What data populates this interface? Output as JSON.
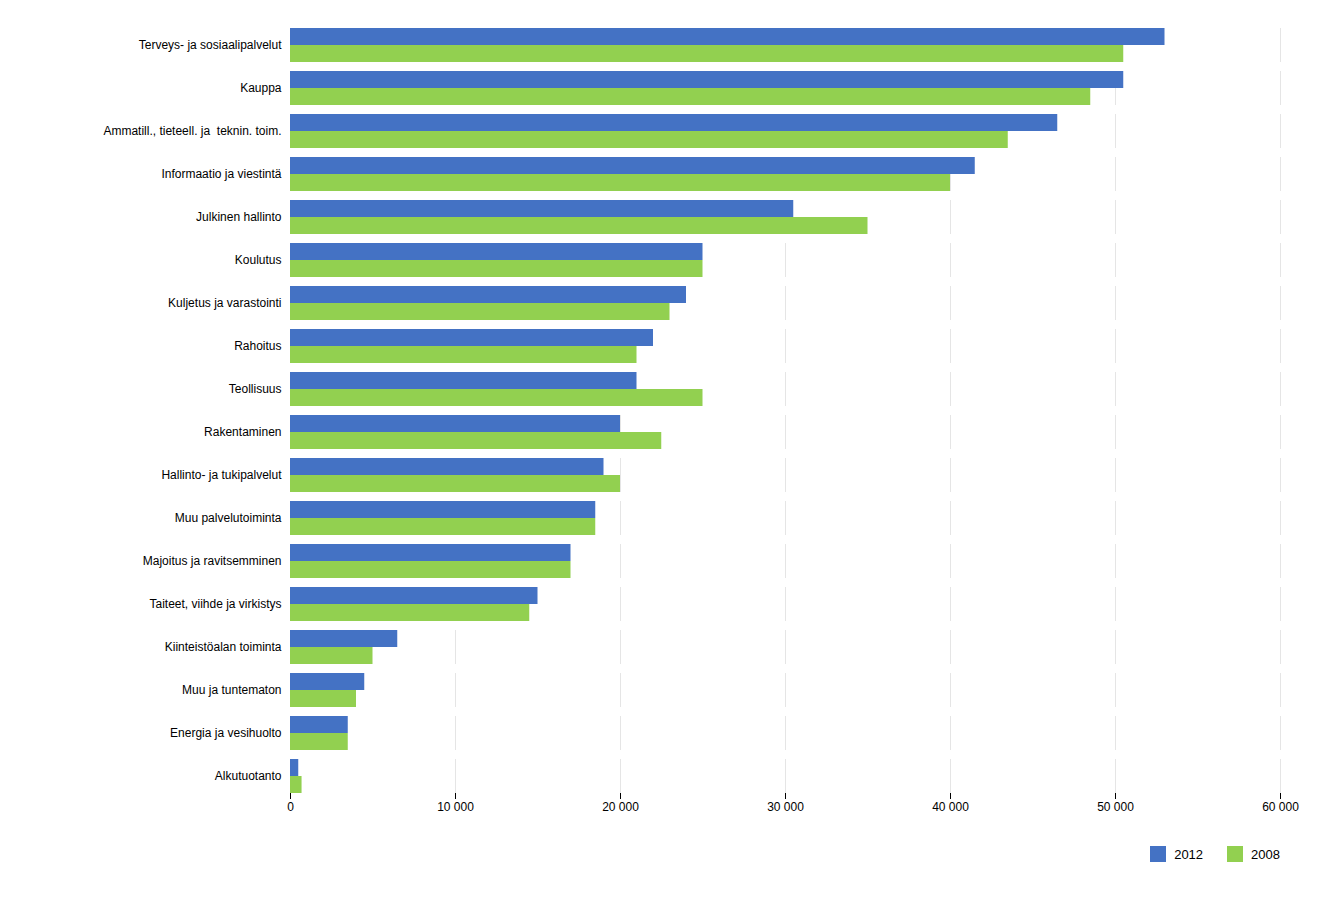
{
  "chart_data": {
    "type": "bar",
    "orientation": "horizontal",
    "categories": [
      "Terveys- ja sosiaalipalvelut",
      "Kauppa",
      "Ammatill., tieteell. ja  teknin. toim.",
      "Informaatio ja viestintä",
      "Julkinen hallinto",
      "Koulutus",
      "Kuljetus ja varastointi",
      "Rahoitus",
      "Teollisuus",
      "Rakentaminen",
      "Hallinto- ja tukipalvelut",
      "Muu palvelutoiminta",
      "Majoitus ja ravitsemminen",
      "Taiteet, viihde ja virkistys",
      "Kiinteistöalan toiminta",
      "Muu ja tuntematon",
      "Energia ja vesihuolto",
      "Alkutuotanto"
    ],
    "series": [
      {
        "name": "2012",
        "color": "#4472C4",
        "values": [
          53000,
          50500,
          46500,
          41500,
          30500,
          25000,
          24000,
          22000,
          21000,
          20000,
          19000,
          18500,
          17000,
          15000,
          6500,
          4500,
          3500,
          500
        ]
      },
      {
        "name": "2008",
        "color": "#92D050",
        "values": [
          50500,
          48500,
          43500,
          40000,
          35000,
          25000,
          23000,
          21000,
          25000,
          22500,
          20000,
          18500,
          17000,
          14500,
          5000,
          4000,
          3500,
          700
        ]
      }
    ],
    "xlim": [
      0,
      60000
    ],
    "xticks": [
      0,
      {
        "value": 10000,
        "label": "10 000"
      },
      {
        "value": 20000,
        "label": "20 000"
      },
      {
        "value": 30000,
        "label": "30 000"
      },
      {
        "value": 40000,
        "label": "40 000"
      },
      {
        "value": 50000,
        "label": "50 000"
      },
      {
        "value": 60000,
        "label": "60 000"
      }
    ],
    "grid": true,
    "legend": "lower right"
  }
}
